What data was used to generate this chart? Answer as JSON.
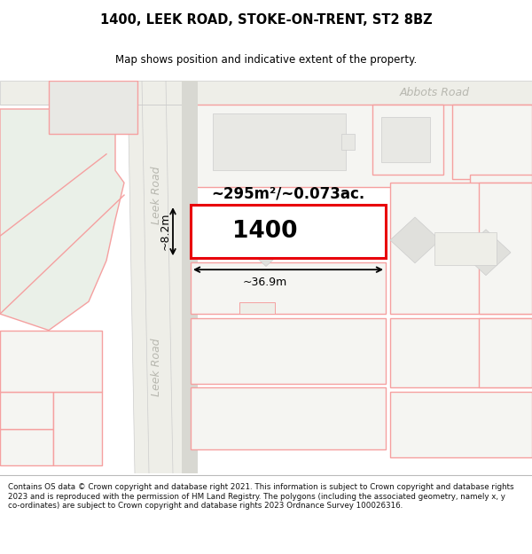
{
  "title_line1": "1400, LEEK ROAD, STOKE-ON-TRENT, ST2 8BZ",
  "title_line2": "Map shows position and indicative extent of the property.",
  "footer_text": "Contains OS data © Crown copyright and database right 2021. This information is subject to Crown copyright and database rights 2023 and is reproduced with the permission of HM Land Registry. The polygons (including the associated geometry, namely x, y co-ordinates) are subject to Crown copyright and database rights 2023 Ordnance Survey 100026316.",
  "map_bg": "#f7f7f5",
  "road_color": "#e8e8e0",
  "plot_fill_white": "#ffffff",
  "plot_fill_light": "#f0f2ee",
  "red_line": "#e8000a",
  "red_light": "#f5a0a0",
  "abbots_road_label": "Abbots Road",
  "leek_road_label": "Leek Road",
  "area_text": "~295m²/~0.073ac.",
  "width_label": "~36.9m",
  "height_label": "~8.2m",
  "property_number": "1400"
}
